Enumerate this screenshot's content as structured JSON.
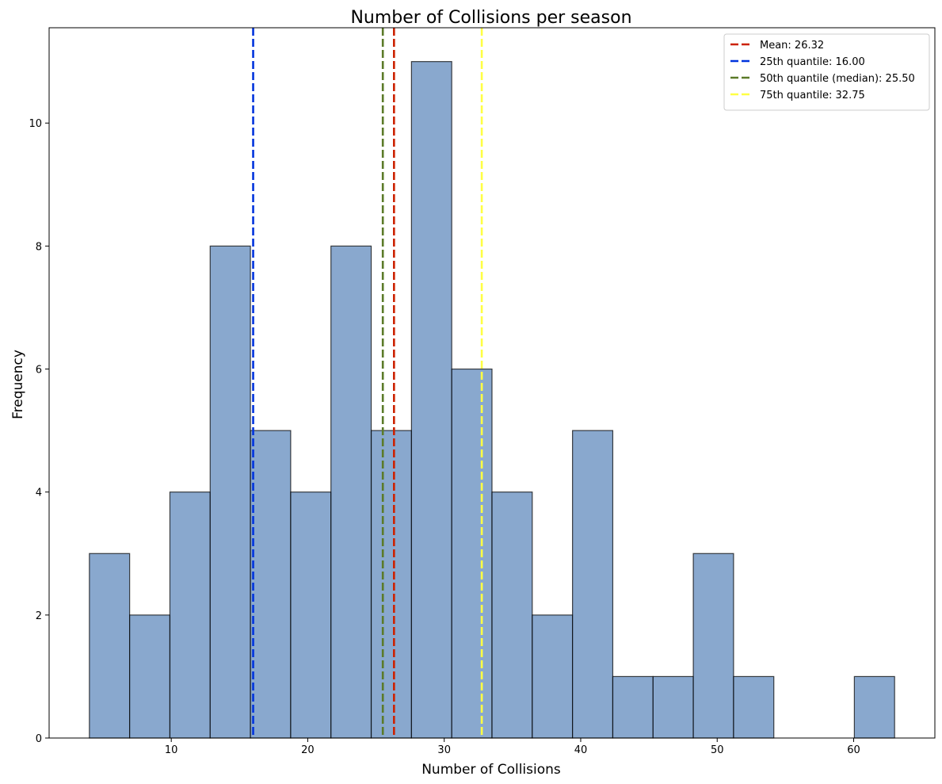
{
  "chart_data": {
    "type": "bar",
    "title": "Number of Collisions per season",
    "xlabel": "Number of Collisions",
    "ylabel": "Frequency",
    "xlim": [
      1.05,
      65.95
    ],
    "ylim": [
      0,
      11.55
    ],
    "xticks": [
      10,
      20,
      30,
      40,
      50,
      60
    ],
    "yticks": [
      0,
      2,
      4,
      6,
      8,
      10
    ],
    "bin_start": 4.0,
    "bin_width": 2.95,
    "counts": [
      3,
      2,
      4,
      8,
      5,
      4,
      8,
      5,
      11,
      6,
      4,
      2,
      5,
      1,
      1,
      3,
      1,
      0,
      0,
      1
    ],
    "bar_color": "#5b86bb",
    "bar_edge_color": "#000000",
    "reference_lines": [
      {
        "label": "Mean: 26.32",
        "value": 26.32,
        "color": "#cc2200"
      },
      {
        "label": "25th quantile: 16.00",
        "value": 16.0,
        "color": "#0033dd"
      },
      {
        "label": "50th quantile (median): 25.50",
        "value": 25.5,
        "color": "#5b7a28"
      },
      {
        "label": "75th quantile: 32.75",
        "value": 32.75,
        "color": "#ffff44"
      }
    ],
    "legend_position": "top-right"
  }
}
